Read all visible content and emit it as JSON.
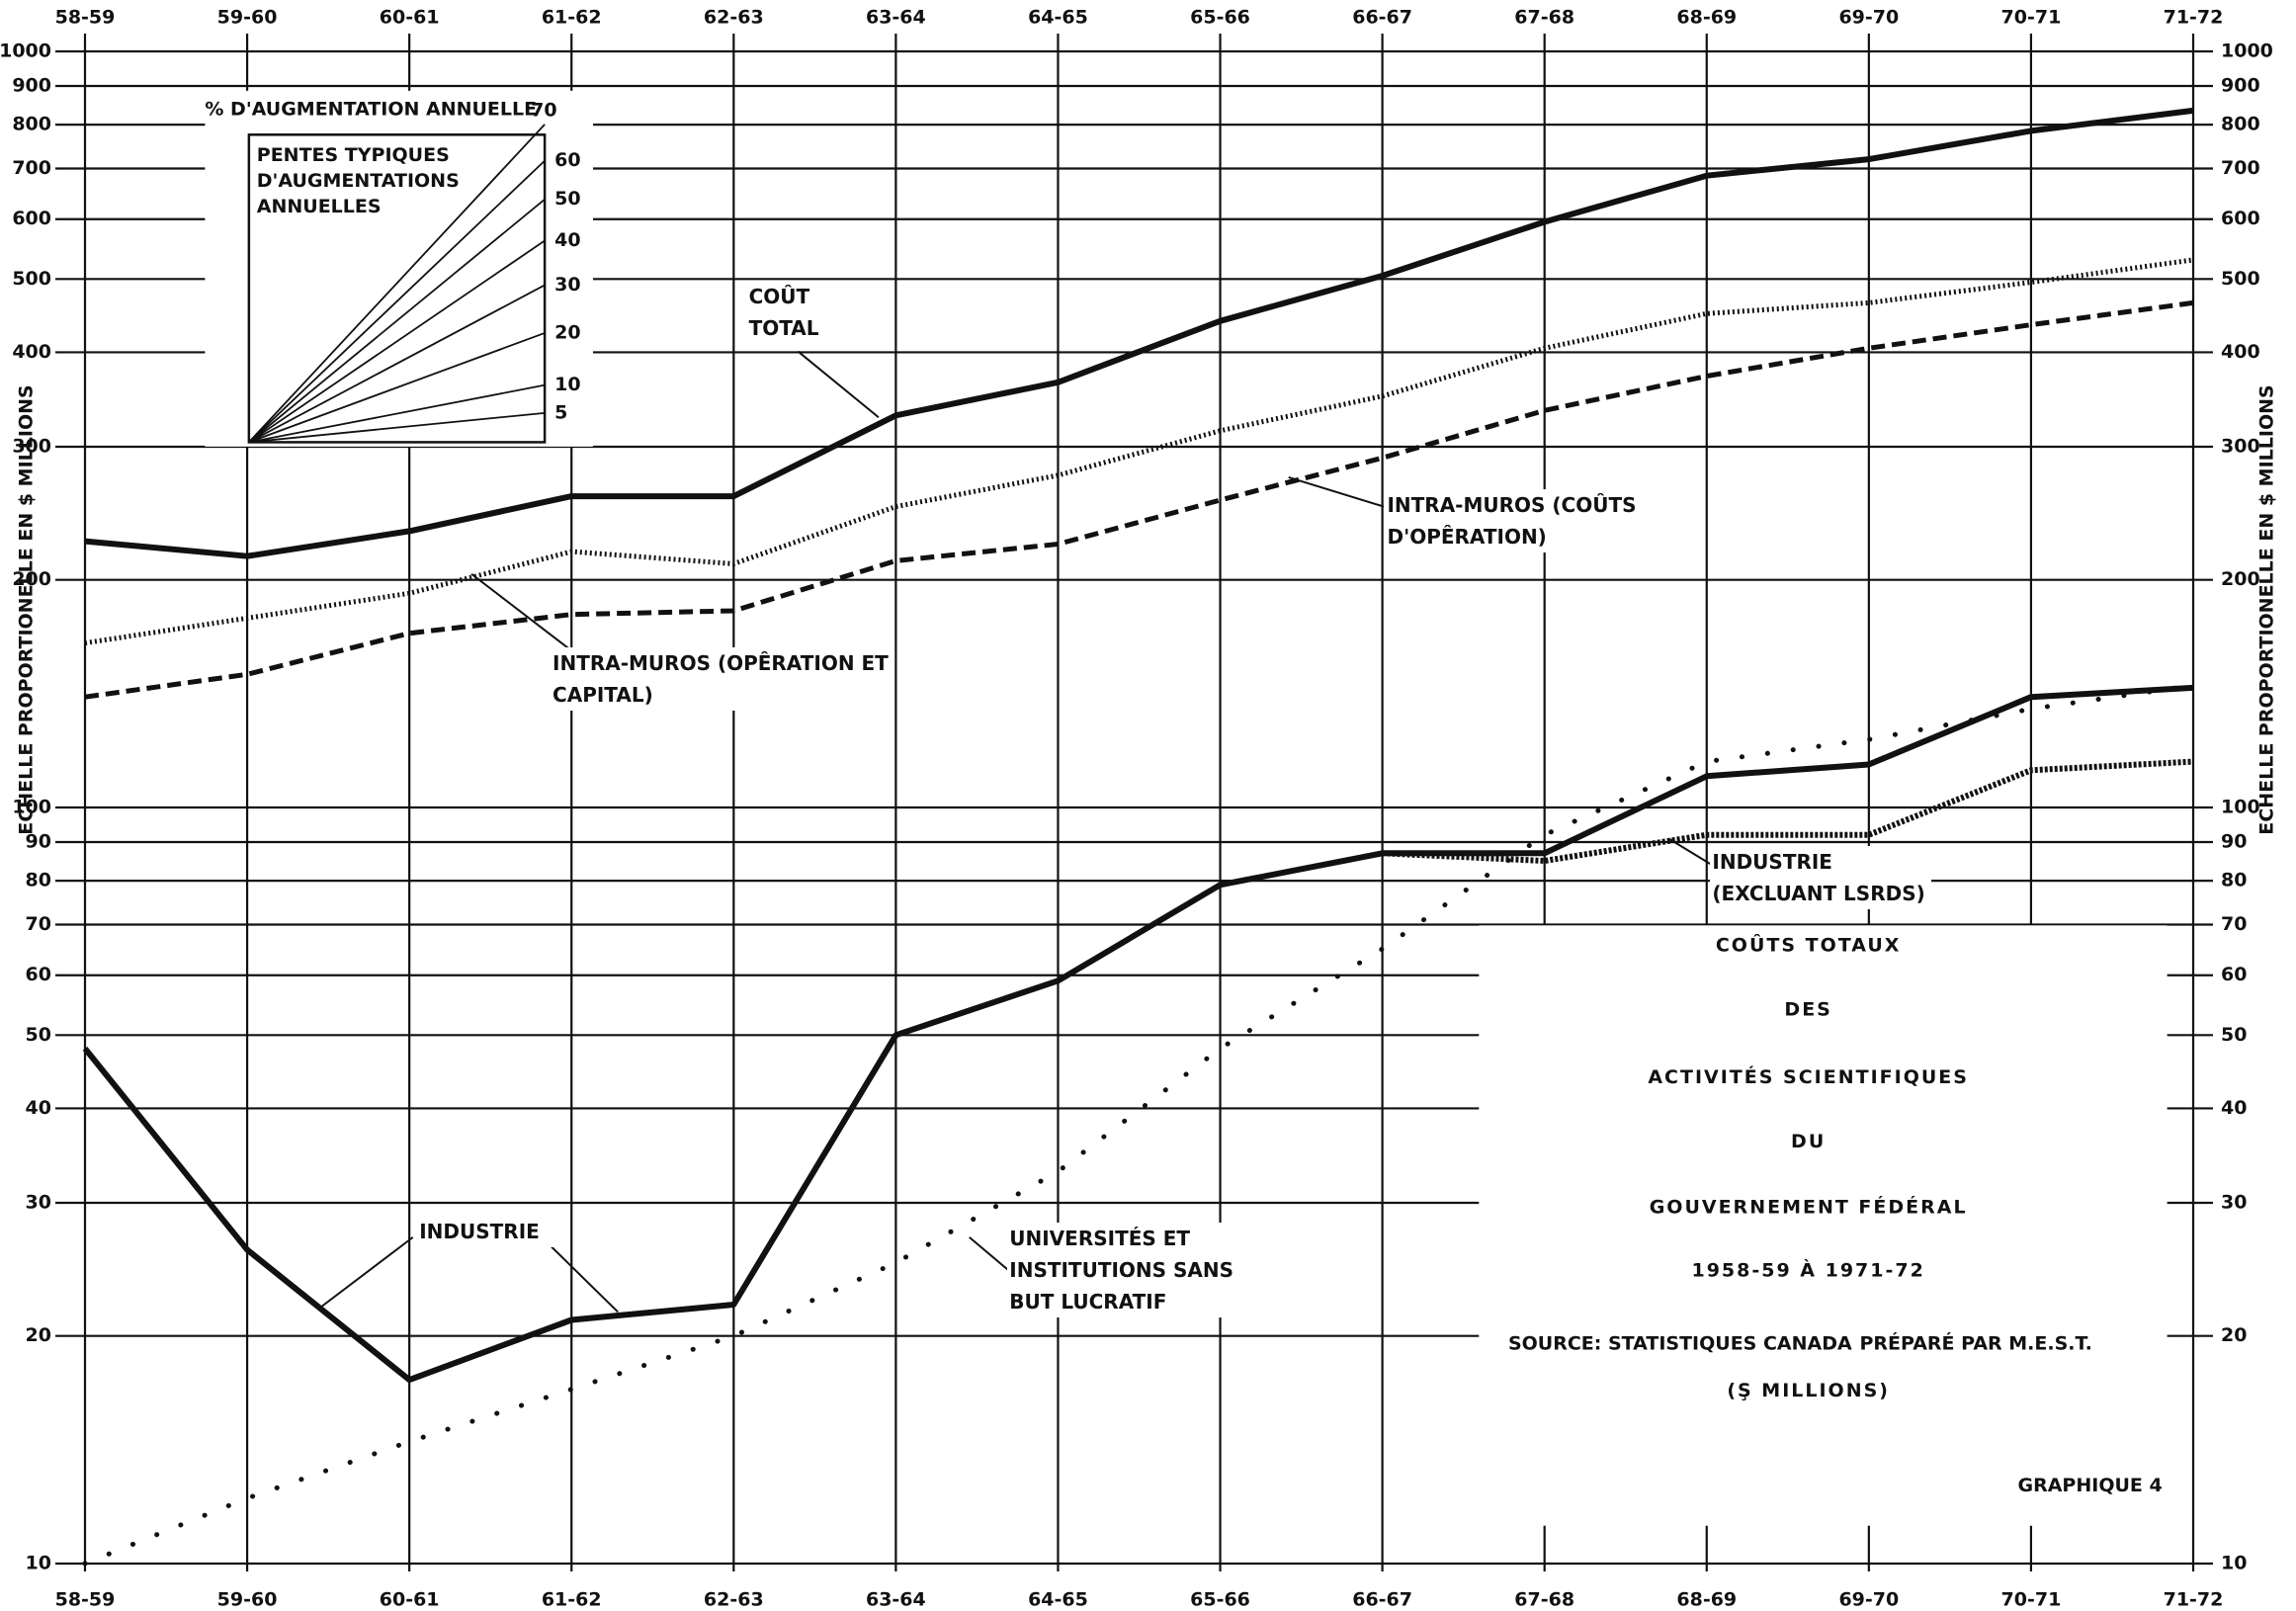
{
  "chart_data": {
    "type": "line",
    "title": [
      "COÛTS TOTAUX",
      "DES",
      "ACTIVITÉS SCIENTIFIQUES",
      "DU",
      "GOUVERNEMENT FÉDÉRAL",
      "1958-59 À 1971-72"
    ],
    "subtitle": "(Ş MILLIONS)",
    "source": "SOURCE: STATISTIQUES CANADA",
    "prepared_by": "PRÉPARÉ PAR M.E.S.T.",
    "figure_label": "GRAPHIQUE 4",
    "ylabel": "ECHELLE PROPORTIONELLE EN $ MILLIONS",
    "categories": [
      "58-59",
      "59-60",
      "60-61",
      "61-62",
      "62-63",
      "63-64",
      "64-65",
      "65-66",
      "66-67",
      "67-68",
      "68-69",
      "69-70",
      "70-71",
      "71-72"
    ],
    "log_y": true,
    "grid": true,
    "ylim": [
      10,
      1000
    ],
    "yticks": [
      10,
      20,
      30,
      40,
      50,
      60,
      70,
      80,
      90,
      100,
      200,
      300,
      400,
      500,
      600,
      700,
      800,
      900,
      1000
    ],
    "series": [
      {
        "name": "COÛT TOTAL",
        "color": "#111111",
        "style": "solid",
        "values": [
          225,
          215,
          232,
          258,
          258,
          330,
          365,
          440,
          505,
          595,
          685,
          720,
          785,
          835
        ]
      },
      {
        "name": "INTRA-MUROS (OPÊRATION ET CAPITAL)",
        "color": "#111111",
        "style": "dotted",
        "values": [
          165,
          178,
          192,
          218,
          210,
          250,
          275,
          315,
          350,
          405,
          450,
          465,
          495,
          530
        ]
      },
      {
        "name": "INTRA-MUROS (COÛTS D'OPÊRATION)",
        "color": "#111111",
        "style": "dashed",
        "values": [
          140,
          150,
          170,
          180,
          182,
          212,
          223,
          255,
          290,
          335,
          372,
          405,
          435,
          465
        ]
      },
      {
        "name": "INDUSTRIE",
        "color": "#111111",
        "style": "solid",
        "values": [
          48,
          26,
          17.5,
          21,
          22,
          50,
          59,
          79,
          87,
          87,
          110,
          114,
          140,
          144
        ]
      },
      {
        "name": "INDUSTRIE (EXCLUANT LSRDS)",
        "color": "#111111",
        "style": "wavy",
        "values": [
          null,
          null,
          null,
          null,
          null,
          null,
          null,
          null,
          87,
          85,
          92,
          92,
          112,
          115
        ]
      },
      {
        "name": "UNIVERSITÉS ET INSTITUTIONS SANS BUT LUCRATIF",
        "color": "#111111",
        "style": "sparse-dotted",
        "values": [
          10,
          12.2,
          14.5,
          17,
          20,
          25,
          33,
          48,
          65,
          92,
          115,
          123,
          135,
          145
        ]
      }
    ],
    "inset": {
      "title": "% D'AUGMENTATION ANNUELLE",
      "caption": "PENTES TYPIQUES D'AUGMENTATIONS ANNUELLES",
      "rates": [
        70,
        60,
        50,
        40,
        30,
        20,
        10,
        5
      ]
    }
  }
}
